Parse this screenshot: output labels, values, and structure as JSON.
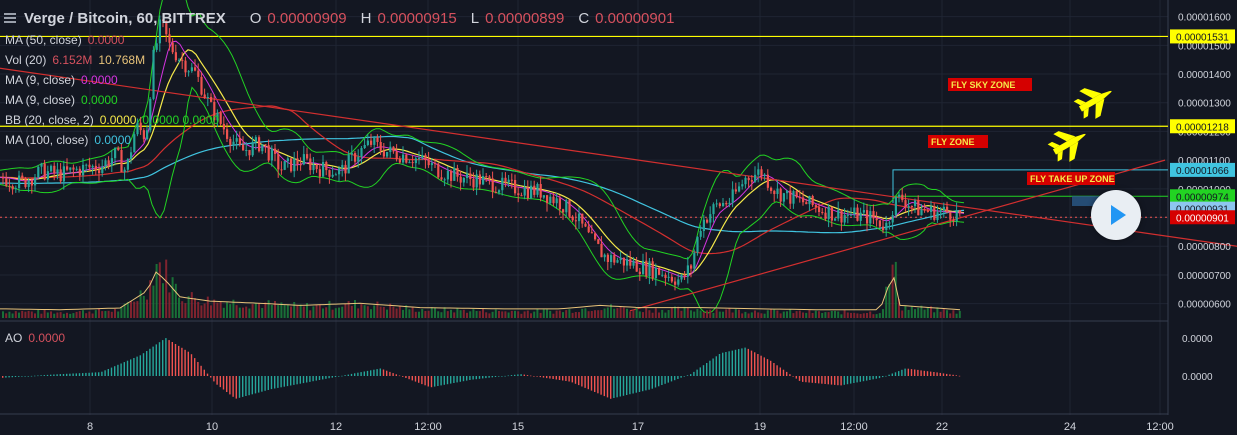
{
  "header": {
    "symbol": "Verge / Bitcoin, 60, BITTREX",
    "open_label": "O",
    "open": "0.00000909",
    "high_label": "H",
    "high": "0.00000915",
    "low_label": "L",
    "low": "0.00000899",
    "close_label": "C",
    "close": "0.00000901"
  },
  "indicators": [
    {
      "name": "MA (50, close)",
      "value": "0.0000",
      "value2": "",
      "color": "#d6515e",
      "color2": ""
    },
    {
      "name": "Vol (20)",
      "value": "6.152M",
      "value2": "10.768M",
      "color": "#d6515e",
      "color2": "#e8c37a"
    },
    {
      "name": "MA (9, close)",
      "value": "0.0000",
      "value2": "",
      "color": "#d534e0",
      "color2": ""
    },
    {
      "name": "MA (9, close)",
      "value": "0.0000",
      "value2": "",
      "color": "#22d322",
      "color2": ""
    },
    {
      "name": "BB (20, close, 2)",
      "value": "0.0000",
      "value2": "0.0000  0.0000",
      "color": "#f5e94a",
      "color2": "#22d322"
    },
    {
      "name": "MA (100, close)",
      "value": "0.0000",
      "value2": "",
      "color": "#40c4e0",
      "color2": ""
    }
  ],
  "ao": {
    "name": "AO",
    "value": "0.0000"
  },
  "annotations": [
    {
      "text": "FLY    SKY ZONE"
    },
    {
      "text": "FLY    ZONE"
    },
    {
      "text": "FLY TAKE UP ZONE"
    }
  ],
  "colors": {
    "background": "#131722",
    "up": "#26a69a",
    "down": "#ef5350",
    "yellow": "#ffff00",
    "red_line": "#d32f2f",
    "accent_badge": "#d50000"
  },
  "chart_data": {
    "type": "candlestick",
    "price_axis": {
      "ticks": [
        "0.00001600",
        "0.00001500",
        "0.00001400",
        "0.00001300",
        "0.00001200",
        "0.00001100",
        "0.00001000",
        "0.00000900",
        "0.00000800",
        "0.00000700",
        "0.00000600"
      ],
      "labels": [
        {
          "text": "0.00001531",
          "value": 1.531e-05,
          "style": "yellow"
        },
        {
          "text": "0.00001218",
          "value": 1.218e-05,
          "style": "yellow"
        },
        {
          "text": "0.00001066",
          "value": 1.066e-05,
          "style": "cyan"
        },
        {
          "text": "0.00000974",
          "value": 9.74e-06,
          "style": "green"
        },
        {
          "text": "0.00000931",
          "value": 9.31e-06,
          "style": "blue"
        },
        {
          "text": "0.00000901",
          "value": 9.01e-06,
          "style": "red"
        }
      ],
      "ylim": [
        5.5e-06,
        1.63e-05
      ]
    },
    "ao_axis": {
      "ticks": [
        "0.0000",
        "0.0000"
      ]
    },
    "time_axis": {
      "ticks": [
        "8",
        "10",
        "12",
        "12:00",
        "15",
        "17",
        "19",
        "12:00",
        "22",
        "24",
        "12:00"
      ]
    },
    "horizontal_lines": [
      {
        "value": 1.531e-05,
        "color": "#ffff00"
      },
      {
        "value": 1.218e-05,
        "color": "#ffff00"
      }
    ],
    "trend_lines": [
      {
        "from": [
          0,
          1.42e-05
        ],
        "to": [
          1237,
          8e-06
        ],
        "color": "#d32f2f"
      },
      {
        "from": [
          630,
          5.75e-06
        ],
        "to": [
          1165,
          1.1e-05
        ],
        "color": "#d32f2f"
      }
    ],
    "price_path": [
      [
        0,
        1.04e-05
      ],
      [
        20,
        1.02e-05
      ],
      [
        40,
        1.06e-05
      ],
      [
        60,
        1.05e-05
      ],
      [
        80,
        1.07e-05
      ],
      [
        100,
        1.08e-05
      ],
      [
        115,
        1.12e-05
      ],
      [
        125,
        1.06e-05
      ],
      [
        135,
        1.22e-05
      ],
      [
        145,
        1.18e-05
      ],
      [
        152,
        1.45e-05
      ],
      [
        160,
        1.58e-05
      ],
      [
        168,
        1.5e-05
      ],
      [
        180,
        1.45e-05
      ],
      [
        195,
        1.4e-05
      ],
      [
        210,
        1.28e-05
      ],
      [
        225,
        1.2e-05
      ],
      [
        240,
        1.13e-05
      ],
      [
        260,
        1.16e-05
      ],
      [
        280,
        1.07e-05
      ],
      [
        300,
        1.1e-05
      ],
      [
        320,
        1.07e-05
      ],
      [
        340,
        1.06e-05
      ],
      [
        355,
        1.12e-05
      ],
      [
        370,
        1.16e-05
      ],
      [
        385,
        1.13e-05
      ],
      [
        400,
        1.12e-05
      ],
      [
        420,
        1.1e-05
      ],
      [
        440,
        1.06e-05
      ],
      [
        460,
        1.04e-05
      ],
      [
        480,
        1.03e-05
      ],
      [
        500,
        1.01e-05
      ],
      [
        520,
        1e-05
      ],
      [
        540,
        9.9e-06
      ],
      [
        560,
        9.5e-06
      ],
      [
        575,
        9e-06
      ],
      [
        590,
        8.2e-06
      ],
      [
        605,
        7.6e-06
      ],
      [
        620,
        7.5e-06
      ],
      [
        640,
        7.3e-06
      ],
      [
        660,
        7.1e-06
      ],
      [
        680,
        6.8e-06
      ],
      [
        690,
        7.3e-06
      ],
      [
        700,
        8.8e-06
      ],
      [
        715,
        9.4e-06
      ],
      [
        730,
        9.6e-06
      ],
      [
        745,
        1.04e-05
      ],
      [
        760,
        1.06e-05
      ],
      [
        775,
        9.9e-06
      ],
      [
        790,
        9.7e-06
      ],
      [
        805,
        9.5e-06
      ],
      [
        820,
        9.3e-06
      ],
      [
        835,
        9.1e-06
      ],
      [
        850,
        9.1e-06
      ],
      [
        870,
        9e-06
      ],
      [
        885,
        8.7e-06
      ],
      [
        893,
        9.5e-06
      ],
      [
        900,
        9.7e-06
      ],
      [
        915,
        9.3e-06
      ],
      [
        930,
        9.2e-06
      ],
      [
        945,
        9.2e-06
      ],
      [
        960,
        9.1e-06
      ]
    ],
    "volume_path": [
      [
        0,
        0.12
      ],
      [
        60,
        0.1
      ],
      [
        120,
        0.14
      ],
      [
        148,
        0.55
      ],
      [
        155,
        1.0
      ],
      [
        165,
        0.8
      ],
      [
        180,
        0.4
      ],
      [
        210,
        0.3
      ],
      [
        260,
        0.25
      ],
      [
        300,
        0.2
      ],
      [
        360,
        0.25
      ],
      [
        420,
        0.15
      ],
      [
        500,
        0.12
      ],
      [
        560,
        0.12
      ],
      [
        600,
        0.2
      ],
      [
        640,
        0.15
      ],
      [
        700,
        0.15
      ],
      [
        760,
        0.12
      ],
      [
        820,
        0.1
      ],
      [
        880,
        0.1
      ],
      [
        893,
        0.95
      ],
      [
        900,
        0.2
      ],
      [
        960,
        0.1
      ]
    ],
    "ao_path": [
      [
        0,
        -0.05
      ],
      [
        60,
        0.05
      ],
      [
        100,
        0.1
      ],
      [
        140,
        0.55
      ],
      [
        165,
        1.0
      ],
      [
        190,
        0.6
      ],
      [
        215,
        -0.2
      ],
      [
        235,
        -0.6
      ],
      [
        270,
        -0.35
      ],
      [
        320,
        -0.1
      ],
      [
        380,
        0.2
      ],
      [
        430,
        -0.3
      ],
      [
        470,
        -0.1
      ],
      [
        520,
        0.05
      ],
      [
        570,
        -0.15
      ],
      [
        610,
        -0.6
      ],
      [
        650,
        -0.35
      ],
      [
        690,
        0.05
      ],
      [
        720,
        0.6
      ],
      [
        745,
        0.75
      ],
      [
        770,
        0.4
      ],
      [
        800,
        -0.15
      ],
      [
        840,
        -0.25
      ],
      [
        880,
        -0.05
      ],
      [
        905,
        0.2
      ],
      [
        935,
        0.1
      ],
      [
        960,
        0.0
      ]
    ]
  }
}
